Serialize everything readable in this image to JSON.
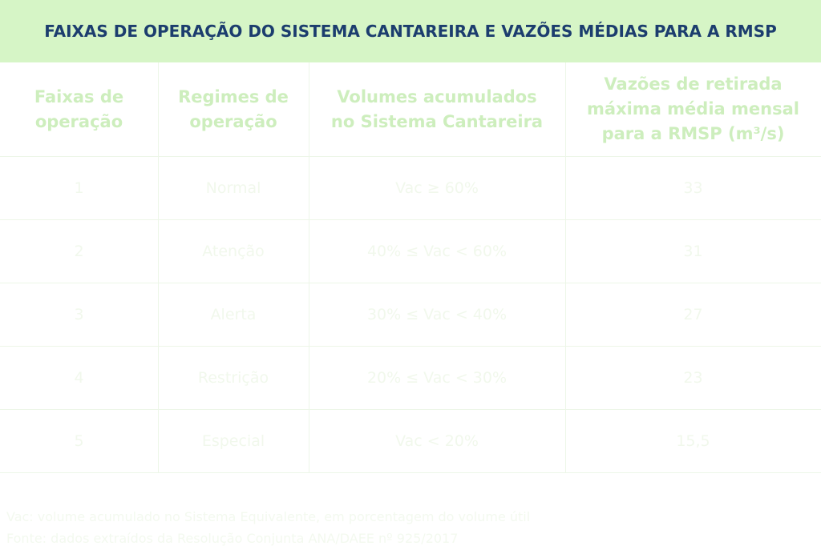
{
  "header": {
    "title": "FAIXAS DE OPERAÇÃO DO SISTEMA CANTAREIRA E VAZÕES MÉDIAS PARA A RMSP"
  },
  "table": {
    "columns": [
      "Faixas de operação",
      "Regimes de operação",
      "Volumes acumulados no Sistema Cantareira",
      "Vazões de retirada máxima média mensal para a RMSP (m³/s)"
    ],
    "rows": [
      [
        "1",
        "Normal",
        "Vac ≥ 60%",
        "33"
      ],
      [
        "2",
        "Atenção",
        "40% ≤ Vac < 60%",
        "31"
      ],
      [
        "3",
        "Alerta",
        "30% ≤ Vac < 40%",
        "27"
      ],
      [
        "4",
        "Restrição",
        "20% ≤ Vac < 30%",
        "23"
      ],
      [
        "5",
        "Especial",
        "Vac < 20%",
        "15,5"
      ]
    ]
  },
  "footnotes": [
    "Vac: volume acumulado no Sistema Equivalente, em porcentagem do volume útil",
    "Fonte: dados extraídos da Resolução Conjunta ANA/DAEE nº 925/2017"
  ]
}
